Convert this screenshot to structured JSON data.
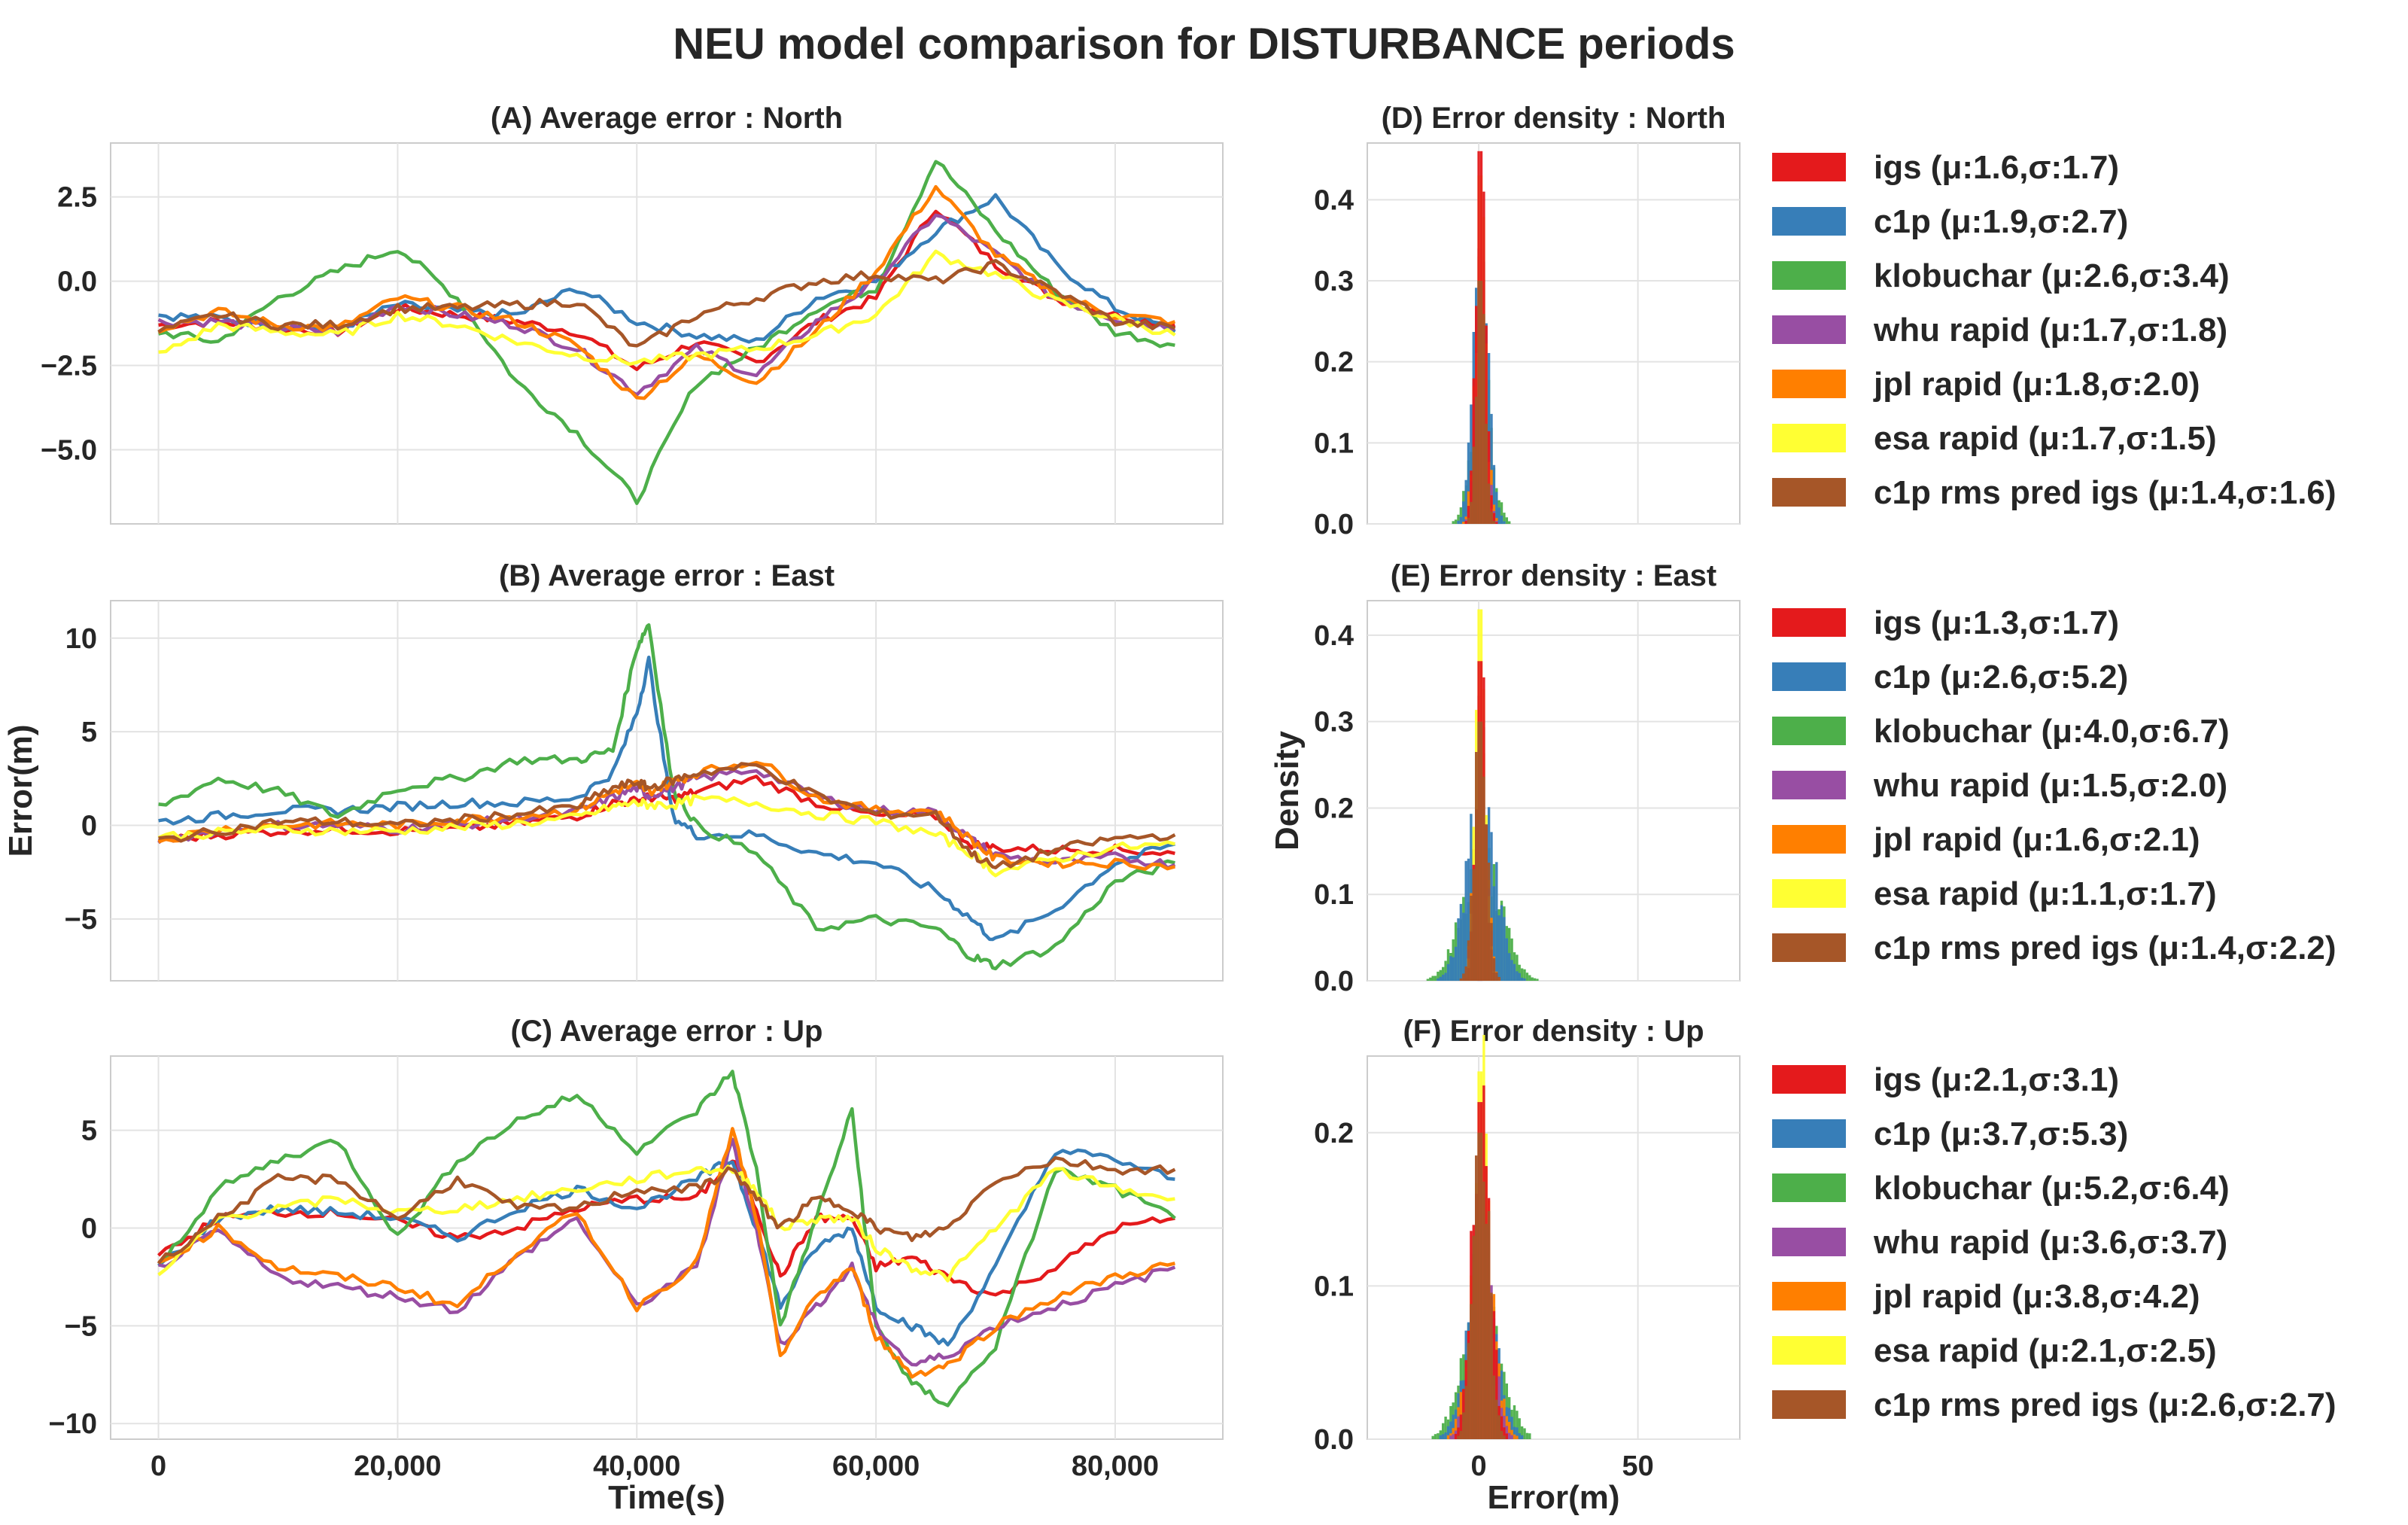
{
  "figure_title": "NEU model comparison for DISTURBANCE periods",
  "colors": {
    "igs": "#e41a1c",
    "c1p": "#377eb8",
    "klobuchar": "#4daf4a",
    "whu rapid": "#984ea3",
    "jpl rapid": "#ff7f00",
    "esa rapid": "#ffff33",
    "c1p rms pred igs": "#a65628"
  },
  "chart_data": [
    {
      "id": "A",
      "type": "line",
      "title": "(A) Average error : North",
      "xlabel": "",
      "ylabel": "",
      "xlim": [
        -4000,
        89000
      ],
      "ylim": [
        -7.2,
        4.1
      ],
      "xticks": [
        0,
        20000,
        40000,
        60000,
        80000
      ],
      "show_xticklabels": false,
      "yticks": [
        -5.0,
        -2.5,
        0.0,
        2.5
      ],
      "ytick_labels": [
        "-5.0",
        "-2.5",
        "0.0",
        "2.5"
      ],
      "x": [
        0,
        5000,
        10000,
        15000,
        20000,
        25000,
        30000,
        35000,
        40000,
        45000,
        50000,
        55000,
        60000,
        65000,
        70000,
        75000,
        80000,
        85000
      ],
      "series": [
        {
          "name": "igs",
          "values": [
            -1.3,
            -1.2,
            -1.4,
            -1.5,
            -0.8,
            -1.0,
            -1.2,
            -1.5,
            -2.6,
            -1.8,
            -2.4,
            -1.2,
            -0.5,
            2.2,
            0.5,
            -0.5,
            -1.0,
            -1.3
          ]
        },
        {
          "name": "c1p",
          "values": [
            -1.0,
            -1.1,
            -1.3,
            -1.4,
            -0.7,
            -0.9,
            -1.0,
            -0.2,
            -1.2,
            -1.6,
            -1.8,
            -0.5,
            0.0,
            1.5,
            2.5,
            0.5,
            -0.8,
            -1.5
          ]
        },
        {
          "name": "klobuchar",
          "values": [
            -1.5,
            -1.8,
            -0.5,
            0.3,
            1.0,
            -0.5,
            -3.0,
            -4.5,
            -6.5,
            -3.0,
            -2.0,
            -0.8,
            -0.2,
            3.6,
            1.5,
            -0.3,
            -1.5,
            -1.9
          ]
        },
        {
          "name": "whu rapid",
          "values": [
            -1.2,
            -1.2,
            -1.4,
            -1.5,
            -0.7,
            -1.0,
            -1.3,
            -2.0,
            -3.3,
            -2.0,
            -2.8,
            -1.2,
            0.0,
            2.0,
            0.8,
            -0.5,
            -1.1,
            -1.4
          ]
        },
        {
          "name": "jpl rapid",
          "values": [
            -1.4,
            -0.9,
            -1.3,
            -1.4,
            -0.5,
            -0.8,
            -1.2,
            -1.9,
            -3.5,
            -2.2,
            -3.0,
            -1.5,
            0.3,
            2.8,
            0.8,
            -0.4,
            -1.0,
            -1.2
          ]
        },
        {
          "name": "esa rapid",
          "values": [
            -2.2,
            -1.3,
            -1.5,
            -1.6,
            -1.0,
            -1.3,
            -1.8,
            -2.2,
            -2.4,
            -2.2,
            -2.0,
            -1.6,
            -1.0,
            0.8,
            0.2,
            -0.6,
            -1.1,
            -1.6
          ]
        },
        {
          "name": "c1p rms pred igs",
          "values": [
            -1.5,
            -1.0,
            -1.3,
            -1.3,
            -0.8,
            -0.8,
            -0.7,
            -0.6,
            -2.0,
            -1.0,
            -0.5,
            0.0,
            0.2,
            0.0,
            0.5,
            -0.3,
            -1.2,
            -1.4
          ]
        }
      ]
    },
    {
      "id": "B",
      "type": "line",
      "title": "(B) Average error : East",
      "xlabel": "",
      "ylabel": "Error(m)",
      "xlim": [
        -4000,
        89000
      ],
      "ylim": [
        -8.3,
        12.0
      ],
      "xticks": [
        0,
        20000,
        40000,
        60000,
        80000
      ],
      "show_xticklabels": false,
      "yticks": [
        -5,
        0,
        5,
        10
      ],
      "ytick_labels": [
        "-5",
        "0",
        "5",
        "10"
      ],
      "x": [
        0,
        5000,
        10000,
        15000,
        20000,
        25000,
        30000,
        35000,
        38000,
        40000,
        41000,
        43000,
        45000,
        50000,
        55000,
        60000,
        65000,
        68000,
        70000,
        75000,
        80000,
        85000
      ],
      "series": [
        {
          "name": "igs",
          "values": [
            -0.8,
            -0.5,
            -0.3,
            -0.2,
            -0.3,
            -0.2,
            0.1,
            0.5,
            1.2,
            1.3,
            1.5,
            1.4,
            1.8,
            2.5,
            1.2,
            0.5,
            0.5,
            -1.0,
            -1.2,
            -1.3,
            -1.3,
            -1.5
          ]
        },
        {
          "name": "c1p",
          "values": [
            0.2,
            0.5,
            0.8,
            0.8,
            1.0,
            1.2,
            1.2,
            1.5,
            2.8,
            6.0,
            8.8,
            0.5,
            -0.5,
            -0.5,
            -1.5,
            -2.0,
            -3.5,
            -5.0,
            -6.2,
            -4.5,
            -2.0,
            -1.0
          ]
        },
        {
          "name": "klobuchar",
          "values": [
            1.0,
            2.5,
            1.8,
            0.5,
            2.0,
            2.5,
            3.5,
            3.5,
            4.0,
            9.5,
            10.8,
            2.0,
            0.0,
            -1.5,
            -5.5,
            -5.0,
            -5.5,
            -7.0,
            -7.5,
            -6.5,
            -3.0,
            -2.0
          ]
        },
        {
          "name": "whu rapid",
          "values": [
            -0.8,
            -0.3,
            0.0,
            0.0,
            -0.2,
            0.0,
            0.4,
            0.7,
            1.5,
            2.0,
            1.6,
            2.0,
            2.5,
            3.0,
            1.5,
            0.8,
            0.7,
            -0.8,
            -1.6,
            -2.0,
            -1.7,
            -2.1
          ]
        },
        {
          "name": "jpl rapid",
          "values": [
            -0.8,
            -0.2,
            0.0,
            0.1,
            0.0,
            0.3,
            0.5,
            0.8,
            1.8,
            2.2,
            1.8,
            2.3,
            2.8,
            3.5,
            1.5,
            0.8,
            0.8,
            -0.8,
            -1.8,
            -2.0,
            -2.0,
            -2.2
          ]
        },
        {
          "name": "esa rapid",
          "values": [
            -0.6,
            -0.4,
            -0.2,
            -0.3,
            -0.3,
            -0.1,
            0.1,
            0.4,
            1.0,
            1.2,
            1.1,
            1.1,
            1.4,
            1.2,
            0.6,
            0.2,
            -0.5,
            -1.5,
            -2.5,
            -1.8,
            -1.2,
            -1.0
          ]
        },
        {
          "name": "c1p rms pred igs",
          "values": [
            -0.8,
            -0.3,
            0.2,
            0.2,
            0.0,
            0.3,
            0.6,
            1.0,
            2.0,
            2.3,
            2.0,
            2.4,
            2.8,
            3.2,
            1.6,
            0.6,
            0.6,
            -1.5,
            -2.3,
            -1.3,
            -0.7,
            -0.5
          ]
        }
      ]
    },
    {
      "id": "C",
      "type": "line",
      "title": "(C) Average error : Up",
      "xlabel": "Time(s)",
      "ylabel": "",
      "xlim": [
        -4000,
        89000
      ],
      "ylim": [
        -10.8,
        8.8
      ],
      "xticks": [
        0,
        20000,
        40000,
        60000,
        80000
      ],
      "xtick_labels": [
        "0",
        "20,000",
        "40,000",
        "60,000",
        "80,000"
      ],
      "show_xticklabels": true,
      "yticks": [
        -10,
        -5,
        0,
        5
      ],
      "ytick_labels": [
        "-10",
        "-5",
        "0",
        "5"
      ],
      "x": [
        0,
        5000,
        10000,
        15000,
        20000,
        25000,
        30000,
        35000,
        40000,
        45000,
        48000,
        50000,
        52000,
        55000,
        58000,
        60000,
        63000,
        66000,
        70000,
        75000,
        80000,
        85000
      ],
      "series": [
        {
          "name": "igs",
          "values": [
            -1.5,
            0.5,
            0.8,
            0.8,
            0.3,
            -0.5,
            0.0,
            1.0,
            1.5,
            1.5,
            3.5,
            1.0,
            -2.5,
            0.5,
            0.5,
            -2.0,
            -1.5,
            -2.5,
            -3.5,
            -2.0,
            0.0,
            0.5
          ]
        },
        {
          "name": "c1p",
          "values": [
            -2.0,
            0.5,
            1.0,
            0.8,
            0.5,
            -0.5,
            1.0,
            2.0,
            1.0,
            2.5,
            3.5,
            0.0,
            -4.0,
            -1.0,
            0.0,
            -4.0,
            -5.0,
            -6.0,
            -2.0,
            4.0,
            3.5,
            2.5
          ]
        },
        {
          "name": "klobuchar",
          "values": [
            -2.0,
            2.0,
            3.5,
            4.5,
            -0.5,
            3.5,
            5.5,
            6.8,
            4.0,
            6.0,
            8.0,
            3.0,
            -5.0,
            0.5,
            6.0,
            -5.0,
            -8.0,
            -9.0,
            -6.0,
            3.0,
            2.0,
            0.5
          ]
        },
        {
          "name": "whu rapid",
          "values": [
            -2.0,
            -0.2,
            -2.5,
            -3.0,
            -3.5,
            -4.2,
            -1.5,
            0.5,
            -4.0,
            -2.0,
            4.5,
            0.0,
            -6.0,
            -4.0,
            -2.0,
            -5.0,
            -7.0,
            -6.5,
            -5.0,
            -4.0,
            -3.0,
            -2.0
          ]
        },
        {
          "name": "jpl rapid",
          "values": [
            -1.8,
            0.0,
            -2.0,
            -2.5,
            -3.0,
            -4.0,
            -1.2,
            0.8,
            -4.0,
            -1.8,
            5.0,
            0.5,
            -6.5,
            -3.5,
            -2.0,
            -5.5,
            -7.5,
            -7.0,
            -5.0,
            -3.5,
            -2.5,
            -1.8
          ]
        },
        {
          "name": "esa rapid",
          "values": [
            -2.5,
            0.5,
            1.0,
            1.5,
            0.8,
            1.0,
            1.5,
            2.0,
            2.5,
            3.0,
            3.0,
            2.0,
            0.0,
            0.5,
            0.5,
            -1.0,
            -2.0,
            -2.5,
            0.0,
            3.0,
            2.0,
            1.5
          ]
        },
        {
          "name": "c1p rms pred igs",
          "values": [
            -1.8,
            0.5,
            2.5,
            2.5,
            0.5,
            2.5,
            1.0,
            1.0,
            2.0,
            2.0,
            3.0,
            1.5,
            0.0,
            1.5,
            1.0,
            0.0,
            -0.5,
            0.0,
            2.5,
            3.5,
            3.0,
            3.0
          ]
        }
      ]
    },
    {
      "id": "D",
      "type": "histogram",
      "title": "(D) Error density : North",
      "xlabel": "",
      "ylabel": "",
      "xlim": [
        -35,
        82
      ],
      "ylim": [
        0,
        0.47
      ],
      "xticks": [
        0,
        50
      ],
      "show_xticklabels": false,
      "yticks": [
        0.0,
        0.1,
        0.2,
        0.3,
        0.4
      ],
      "ytick_labels": [
        "0.0",
        "0.1",
        "0.2",
        "0.3",
        "0.4"
      ],
      "series": [
        {
          "name": "igs",
          "mu": 1.6,
          "sigma": 1.7,
          "peak": 0.46
        },
        {
          "name": "c1p",
          "mu": 1.9,
          "sigma": 2.7,
          "peak": 0.3
        },
        {
          "name": "klobuchar",
          "mu": 2.6,
          "sigma": 3.4,
          "peak": 0.2
        },
        {
          "name": "whu rapid",
          "mu": 1.7,
          "sigma": 1.8,
          "peak": 0.34
        },
        {
          "name": "jpl rapid",
          "mu": 1.8,
          "sigma": 2.0,
          "peak": 0.33
        },
        {
          "name": "esa rapid",
          "mu": 1.7,
          "sigma": 1.5,
          "peak": 0.43
        },
        {
          "name": "c1p rms pred igs",
          "mu": 1.4,
          "sigma": 1.6,
          "peak": 0.3
        }
      ],
      "legend": [
        "igs (μ:1.6,σ:1.7)",
        "c1p (μ:1.9,σ:2.7)",
        "klobuchar (μ:2.6,σ:3.4)",
        "whu rapid (μ:1.7,σ:1.8)",
        "jpl rapid (μ:1.8,σ:2.0)",
        "esa rapid (μ:1.7,σ:1.5)",
        "c1p rms pred igs (μ:1.4,σ:1.6)"
      ]
    },
    {
      "id": "E",
      "type": "histogram",
      "title": "(E) Error density : East",
      "xlabel": "",
      "ylabel": "Density",
      "xlim": [
        -35,
        82
      ],
      "ylim": [
        0,
        0.44
      ],
      "xticks": [
        0,
        50
      ],
      "show_xticklabels": false,
      "yticks": [
        0.0,
        0.1,
        0.2,
        0.3,
        0.4
      ],
      "ytick_labels": [
        "0.0",
        "0.1",
        "0.2",
        "0.3",
        "0.4"
      ],
      "series": [
        {
          "name": "igs",
          "mu": 1.3,
          "sigma": 1.7,
          "peak": 0.37
        },
        {
          "name": "c1p",
          "mu": 2.6,
          "sigma": 5.2,
          "peak": 0.2
        },
        {
          "name": "klobuchar",
          "mu": 4.0,
          "sigma": 6.7,
          "peak": 0.14
        },
        {
          "name": "whu rapid",
          "mu": 1.5,
          "sigma": 2.0,
          "peak": 0.33
        },
        {
          "name": "jpl rapid",
          "mu": 1.6,
          "sigma": 2.1,
          "peak": 0.3
        },
        {
          "name": "esa rapid",
          "mu": 1.1,
          "sigma": 1.7,
          "peak": 0.43
        },
        {
          "name": "c1p rms pred igs",
          "mu": 1.4,
          "sigma": 2.2,
          "peak": 0.3
        }
      ],
      "legend": [
        "igs (μ:1.3,σ:1.7)",
        "c1p (μ:2.6,σ:5.2)",
        "klobuchar (μ:4.0,σ:6.7)",
        "whu rapid (μ:1.5,σ:2.0)",
        "jpl rapid (μ:1.6,σ:2.1)",
        "esa rapid (μ:1.1,σ:1.7)",
        "c1p rms pred igs (μ:1.4,σ:2.2)"
      ]
    },
    {
      "id": "F",
      "type": "histogram",
      "title": "(F) Error density : Up",
      "xlabel": "Error(m)",
      "ylabel": "",
      "xlim": [
        -35,
        82
      ],
      "ylim": [
        0,
        0.25
      ],
      "xticks": [
        0,
        50
      ],
      "xtick_labels": [
        "0",
        "50"
      ],
      "show_xticklabels": true,
      "yticks": [
        0.0,
        0.1,
        0.2
      ],
      "ytick_labels": [
        "0.0",
        "0.1",
        "0.2"
      ],
      "series": [
        {
          "name": "igs",
          "mu": 2.1,
          "sigma": 3.1,
          "peak": 0.22
        },
        {
          "name": "c1p",
          "mu": 3.7,
          "sigma": 5.3,
          "peak": 0.1
        },
        {
          "name": "klobuchar",
          "mu": 5.2,
          "sigma": 6.4,
          "peak": 0.09
        },
        {
          "name": "whu rapid",
          "mu": 3.6,
          "sigma": 3.7,
          "peak": 0.14
        },
        {
          "name": "jpl rapid",
          "mu": 3.8,
          "sigma": 4.2,
          "peak": 0.13
        },
        {
          "name": "esa rapid",
          "mu": 2.1,
          "sigma": 2.5,
          "peak": 0.24
        },
        {
          "name": "c1p rms pred igs",
          "mu": 2.6,
          "sigma": 2.7,
          "peak": 0.2
        }
      ],
      "legend": [
        "igs (μ:2.1,σ:3.1)",
        "c1p (μ:3.7,σ:5.3)",
        "klobuchar (μ:5.2,σ:6.4)",
        "whu rapid (μ:3.6,σ:3.7)",
        "jpl rapid (μ:3.8,σ:4.2)",
        "esa rapid (μ:2.1,σ:2.5)",
        "c1p rms pred igs (μ:2.6,σ:2.7)"
      ]
    }
  ]
}
